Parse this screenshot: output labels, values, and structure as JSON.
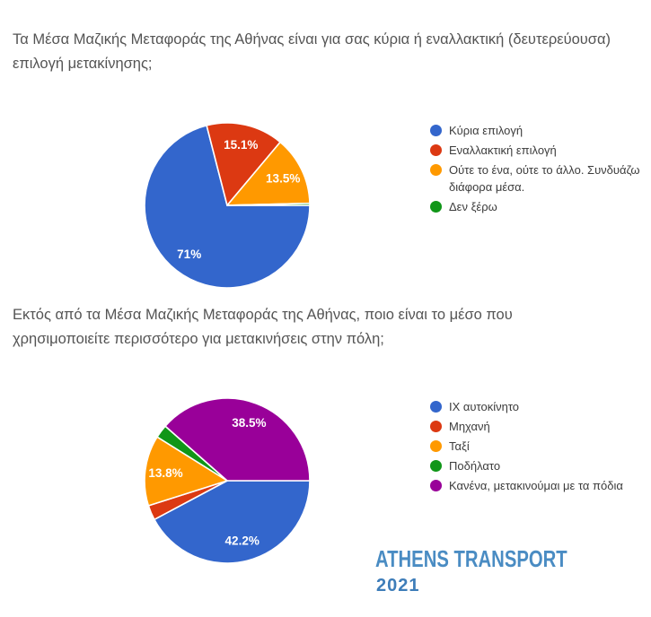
{
  "page": {
    "background": "#ffffff",
    "question_text_color": "#545454",
    "legend_text_color": "#3c3c3c",
    "slice_label_text_color": "#ffffff"
  },
  "chart_data": [
    {
      "type": "pie",
      "question": "Τα Μέσα Μαζικής Μεταφοράς της Αθήνας είναι για σας κύρια ή εναλλακτική (δευτερεύουσα)\nεπιλογή μετακίνησης;",
      "legend_position": "right",
      "start_angle_deg": 90,
      "slices": [
        {
          "label": "Κύρια επιλογή",
          "value": 71,
          "pct_label": "71%",
          "color": "#3366CC"
        },
        {
          "label": "Εναλλακτική επιλογή",
          "value": 15.1,
          "pct_label": "15.1%",
          "color": "#DC3912"
        },
        {
          "label": "Ούτε το ένα, ούτε το άλλο. Συνδυάζω διάφορα μέσα.",
          "value": 13.5,
          "pct_label": "13.5%",
          "color": "#FF9900"
        },
        {
          "label": "Δεν ξέρω",
          "value": 0.4,
          "pct_label": "",
          "color": "#109618"
        }
      ]
    },
    {
      "type": "pie",
      "question": "Εκτός από τα Μέσα Μαζικής Μεταφοράς της Αθήνας, ποιο είναι το μέσο που\nχρησιμοποιείτε περισσότερο για μετακινήσεις στην πόλη;",
      "legend_position": "right",
      "start_angle_deg": 90,
      "slices": [
        {
          "label": "ΙΧ αυτοκίνητο",
          "value": 42.2,
          "pct_label": "42.2%",
          "color": "#3366CC"
        },
        {
          "label": "Μηχανή",
          "value": 2.9,
          "pct_label": "",
          "color": "#DC3912"
        },
        {
          "label": "Ταξί",
          "value": 13.8,
          "pct_label": "13.8%",
          "color": "#FF9900"
        },
        {
          "label": "Ποδήλατο",
          "value": 2.6,
          "pct_label": "",
          "color": "#109618"
        },
        {
          "label": "Κανένα, μετακινούμαι με τα πόδια",
          "value": 38.5,
          "pct_label": "38.5%",
          "color": "#990099"
        }
      ]
    }
  ],
  "footer": {
    "brand": "ATHENS TRANSPORT",
    "year": "2021",
    "brand_color": "#4a8cc3",
    "year_color": "#3e7db9"
  }
}
